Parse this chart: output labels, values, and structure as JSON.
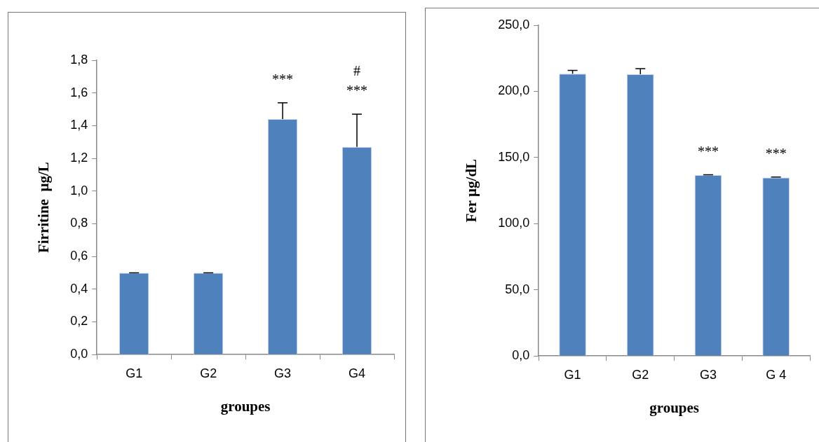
{
  "chart_data": [
    {
      "type": "bar",
      "xlabel": "groupes",
      "ylabel": "Firritine  µg/L",
      "categories": [
        "G1",
        "G2",
        "G3",
        "G4"
      ],
      "values": [
        0.5,
        0.5,
        1.44,
        1.27
      ],
      "color": "#4f81bd",
      "errors": [
        [
          0.5,
          0.5
        ],
        [
          0.5,
          0.5
        ],
        [
          1.44,
          1.54
        ],
        [
          1.27,
          1.47
        ]
      ],
      "ylim": [
        0,
        1.8
      ],
      "yticks": [
        {
          "value": 0,
          "label": "0,0"
        },
        {
          "value": 0.2,
          "label": "0,2"
        },
        {
          "value": 0.4,
          "label": "0,4"
        },
        {
          "value": 0.6,
          "label": "0,6"
        },
        {
          "value": 0.8,
          "label": "0,8"
        },
        {
          "value": 1.0,
          "label": "1,0"
        },
        {
          "value": 1.2,
          "label": "1,2"
        },
        {
          "value": 1.4,
          "label": "1,4"
        },
        {
          "value": 1.6,
          "label": "1,6"
        },
        {
          "value": 1.8,
          "label": "1,8"
        }
      ],
      "grid": false,
      "legend": false,
      "annotations": [
        {
          "text": "***",
          "x": "G3",
          "y": 1.54
        },
        {
          "text": "***",
          "x": "G4",
          "y": 1.47
        },
        {
          "text": "#",
          "x": "G4",
          "y": 1.47
        }
      ]
    },
    {
      "type": "bar",
      "xlabel": "groupes",
      "ylabel": "Fer µg/dL",
      "categories": [
        "G1",
        "G2",
        "G3",
        "G 4"
      ],
      "values": [
        213.3,
        212.9,
        136.7,
        134.9
      ],
      "color": "#4f81bd",
      "errors": [
        [
          213.3,
          215.8
        ],
        [
          212.9,
          217.2
        ],
        [
          136.7,
          137
        ],
        [
          134.9,
          135.2
        ]
      ],
      "ylim": [
        0,
        250
      ],
      "yticks": [
        {
          "value": 0,
          "label": "0,0"
        },
        {
          "value": 50,
          "label": "50,0"
        },
        {
          "value": 100,
          "label": "100,0"
        },
        {
          "value": 150,
          "label": "150,0"
        },
        {
          "value": 200,
          "label": "200,0"
        },
        {
          "value": 250,
          "label": "250,0"
        }
      ],
      "grid": false,
      "legend": false,
      "annotations": [
        {
          "text": "***",
          "x": "G3",
          "y": 137
        },
        {
          "text": "***",
          "x": "G 4",
          "y": 135.2
        }
      ]
    }
  ]
}
